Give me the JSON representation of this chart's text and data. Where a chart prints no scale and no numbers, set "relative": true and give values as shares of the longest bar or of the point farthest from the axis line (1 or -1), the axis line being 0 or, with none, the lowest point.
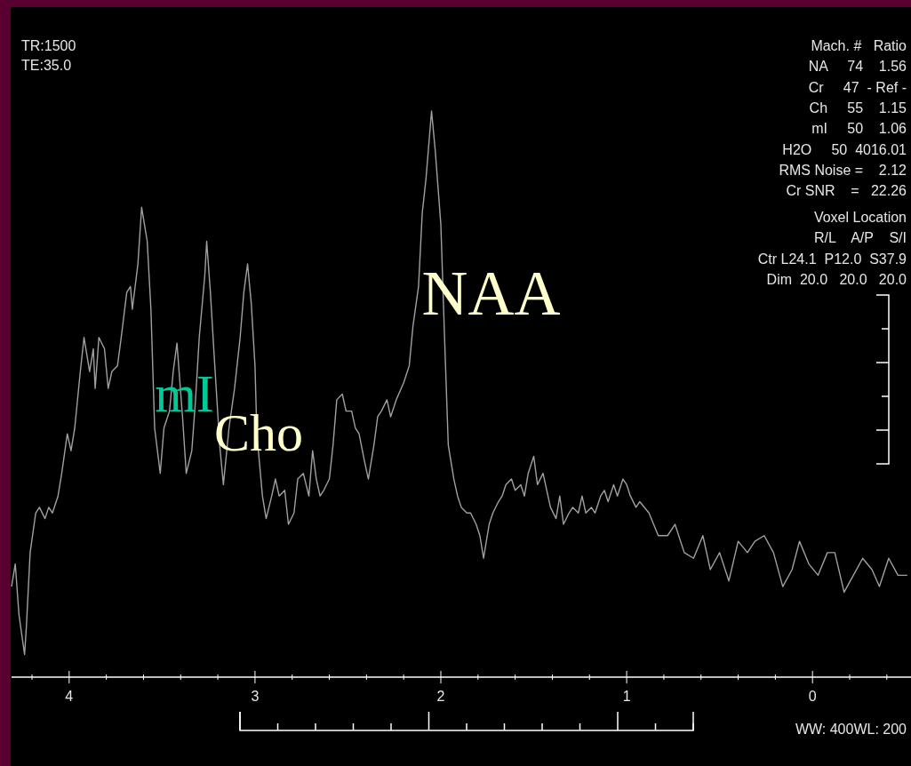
{
  "chart_data": {
    "type": "line",
    "relative": true,
    "grid": false,
    "xlim": [
      4.31,
      -0.53
    ],
    "xticks": [
      {
        "value": 4.2,
        "label": null
      },
      4,
      {
        "value": 3.8,
        "label": null
      },
      {
        "value": 3.6,
        "label": null
      },
      {
        "value": 3.4,
        "label": null
      },
      {
        "value": 3.2,
        "label": null
      },
      3,
      {
        "value": 2.8,
        "label": null
      },
      {
        "value": 2.6,
        "label": null
      },
      {
        "value": 2.4,
        "label": null
      },
      {
        "value": 2.2,
        "label": null
      },
      2,
      {
        "value": 1.8,
        "label": null
      },
      {
        "value": 1.6,
        "label": null
      },
      {
        "value": 1.4,
        "label": null
      },
      {
        "value": 1.2,
        "label": null
      },
      1,
      {
        "value": 0.8,
        "label": null
      },
      {
        "value": 0.6,
        "label": null
      },
      {
        "value": 0.4,
        "label": null
      },
      {
        "value": 0.2,
        "label": null
      },
      0,
      {
        "value": -0.2,
        "label": null
      },
      {
        "value": -0.4,
        "label": null
      }
    ],
    "series": [
      {
        "color": "#a0a0a0",
        "x": [
          4.31,
          4.29,
          4.27,
          4.24,
          4.23,
          4.21,
          4.18,
          4.16,
          4.13,
          4.11,
          4.09,
          4.06,
          4.04,
          4.01,
          3.99,
          3.97,
          3.94,
          3.92,
          3.89,
          3.87,
          3.86,
          3.84,
          3.81,
          3.79,
          3.77,
          3.74,
          3.72,
          3.69,
          3.67,
          3.66,
          3.63,
          3.61,
          3.58,
          3.56,
          3.54,
          3.51,
          3.49,
          3.46,
          3.44,
          3.42,
          3.39,
          3.37,
          3.34,
          3.32,
          3.3,
          3.27,
          3.26,
          3.24,
          3.22,
          3.19,
          3.17,
          3.14,
          3.11,
          3.08,
          3.06,
          3.04,
          3.02,
          3.0,
          2.99,
          2.96,
          2.94,
          2.91,
          2.89,
          2.87,
          2.84,
          2.82,
          2.79,
          2.77,
          2.74,
          2.71,
          2.69,
          2.67,
          2.65,
          2.63,
          2.6,
          2.58,
          2.56,
          2.53,
          2.51,
          2.48,
          2.46,
          2.44,
          2.41,
          2.39,
          2.36,
          2.34,
          2.32,
          2.29,
          2.27,
          2.24,
          2.2,
          2.17,
          2.15,
          2.12,
          2.1,
          2.08,
          2.05,
          2.03,
          2.0,
          1.98,
          1.96,
          1.93,
          1.91,
          1.89,
          1.86,
          1.84,
          1.81,
          1.79,
          1.77,
          1.74,
          1.72,
          1.69,
          1.67,
          1.65,
          1.62,
          1.6,
          1.57,
          1.55,
          1.53,
          1.5,
          1.48,
          1.45,
          1.43,
          1.41,
          1.38,
          1.36,
          1.34,
          1.31,
          1.29,
          1.26,
          1.24,
          1.22,
          1.19,
          1.17,
          1.14,
          1.12,
          1.1,
          1.07,
          1.05,
          1.02,
          1.0,
          0.98,
          0.95,
          0.93,
          0.88,
          0.83,
          0.78,
          0.74,
          0.69,
          0.64,
          0.59,
          0.55,
          0.5,
          0.45,
          0.4,
          0.35,
          0.31,
          0.26,
          0.21,
          0.16,
          0.11,
          0.07,
          0.02,
          -0.03,
          -0.08,
          -0.12,
          -0.17,
          -0.22,
          -0.27,
          -0.32,
          -0.36,
          -0.41,
          -0.46,
          -0.51
        ],
        "values": [
          0.16,
          0.2,
          0.11,
          0.04,
          0.09,
          0.22,
          0.29,
          0.3,
          0.28,
          0.3,
          0.29,
          0.32,
          0.36,
          0.43,
          0.4,
          0.44,
          0.54,
          0.6,
          0.54,
          0.58,
          0.51,
          0.6,
          0.58,
          0.51,
          0.54,
          0.55,
          0.6,
          0.68,
          0.69,
          0.65,
          0.73,
          0.83,
          0.77,
          0.65,
          0.44,
          0.36,
          0.44,
          0.47,
          0.54,
          0.59,
          0.46,
          0.36,
          0.4,
          0.49,
          0.6,
          0.71,
          0.77,
          0.68,
          0.57,
          0.41,
          0.34,
          0.44,
          0.51,
          0.6,
          0.68,
          0.73,
          0.66,
          0.55,
          0.43,
          0.32,
          0.28,
          0.32,
          0.35,
          0.32,
          0.33,
          0.27,
          0.29,
          0.35,
          0.36,
          0.32,
          0.4,
          0.35,
          0.32,
          0.33,
          0.35,
          0.41,
          0.49,
          0.5,
          0.47,
          0.47,
          0.44,
          0.43,
          0.38,
          0.35,
          0.41,
          0.46,
          0.47,
          0.49,
          0.46,
          0.49,
          0.52,
          0.55,
          0.62,
          0.69,
          0.82,
          0.88,
          1,
          0.93,
          0.8,
          0.6,
          0.41,
          0.35,
          0.32,
          0.3,
          0.29,
          0.29,
          0.27,
          0.25,
          0.21,
          0.27,
          0.29,
          0.31,
          0.32,
          0.34,
          0.35,
          0.33,
          0.34,
          0.32,
          0.36,
          0.39,
          0.34,
          0.36,
          0.33,
          0.3,
          0.28,
          0.32,
          0.27,
          0.29,
          0.3,
          0.29,
          0.32,
          0.29,
          0.3,
          0.29,
          0.32,
          0.33,
          0.31,
          0.34,
          0.32,
          0.35,
          0.34,
          0.32,
          0.3,
          0.31,
          0.29,
          0.25,
          0.25,
          0.27,
          0.22,
          0.21,
          0.25,
          0.19,
          0.22,
          0.17,
          0.24,
          0.22,
          0.24,
          0.25,
          0.22,
          0.16,
          0.19,
          0.24,
          0.2,
          0.18,
          0.22,
          0.22,
          0.15,
          0.18,
          0.21,
          0.19,
          0.16,
          0.21,
          0.18,
          0.18
        ]
      }
    ],
    "annotations": [
      "TR:1500",
      "TE:35.0",
      "Mach. #   Ratio",
      "NA     74    1.56",
      "Cr     47  - Ref -",
      "Ch     55    1.15",
      "mI     50    1.06",
      "H2O     50  4016.01",
      "RMS Noise =    2.12",
      "Cr SNR    =   22.26",
      "Voxel Location",
      "R/L    A/P    S/I",
      "Ctr L24.1  P12.0  S37.9",
      "Dim  20.0   20.0   20.0",
      "WW: 400WL: 200",
      "NAA",
      "Cho",
      "mI"
    ]
  }
}
